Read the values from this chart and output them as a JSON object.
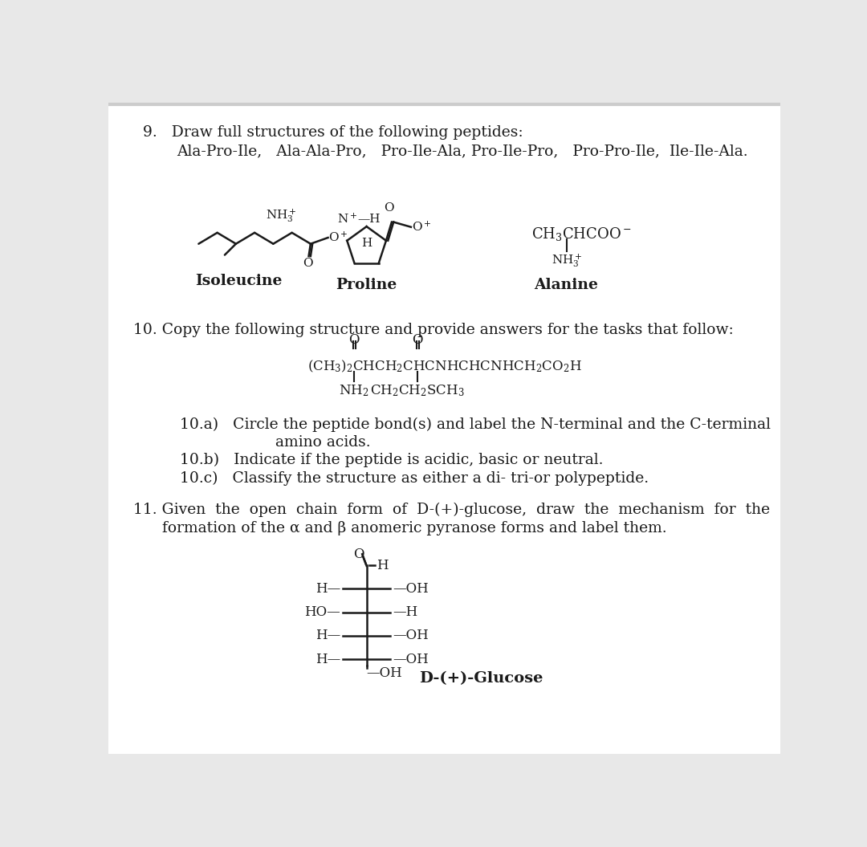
{
  "bg_color": "#e8e8e8",
  "page_bg": "#ffffff",
  "text_color": "#1a1a1a",
  "q9_header": "9.   Draw full structures of the following peptides:",
  "q9_peptides": "Ala-Pro-Ile,   Ala-Ala-Pro,   Pro-Ile-Ala, Pro-Ile-Pro,   Pro-Pro-Ile,  Ile-Ile-Ala.",
  "q10_header": "10. Copy the following structure and provide answers for the tasks that follow:",
  "q10a": "10.a)   Circle the peptide bond(s) and label the N-terminal and the C-terminal",
  "q10a2": "            amino acids.",
  "q10b": "10.b)   Indicate if the peptide is acidic, basic or neutral.",
  "q10c": "10.c)   Classify the structure as either a di- tri-or polypeptide.",
  "q11_line1": "11. Given  the  open  chain  form  of  D-(+)-glucose,  draw  the  mechanism  for  the",
  "q11_line2": "      formation of the α and β anomeric pyranose forms and label them.",
  "label_isoleucine": "Isoleucine",
  "label_proline": "Proline",
  "label_alanine": "Alanine",
  "label_glucose": "D-(+)-Glucose",
  "fontsize_body": 13.5,
  "fontsize_chem": 12.0,
  "fontsize_label": 13.5
}
